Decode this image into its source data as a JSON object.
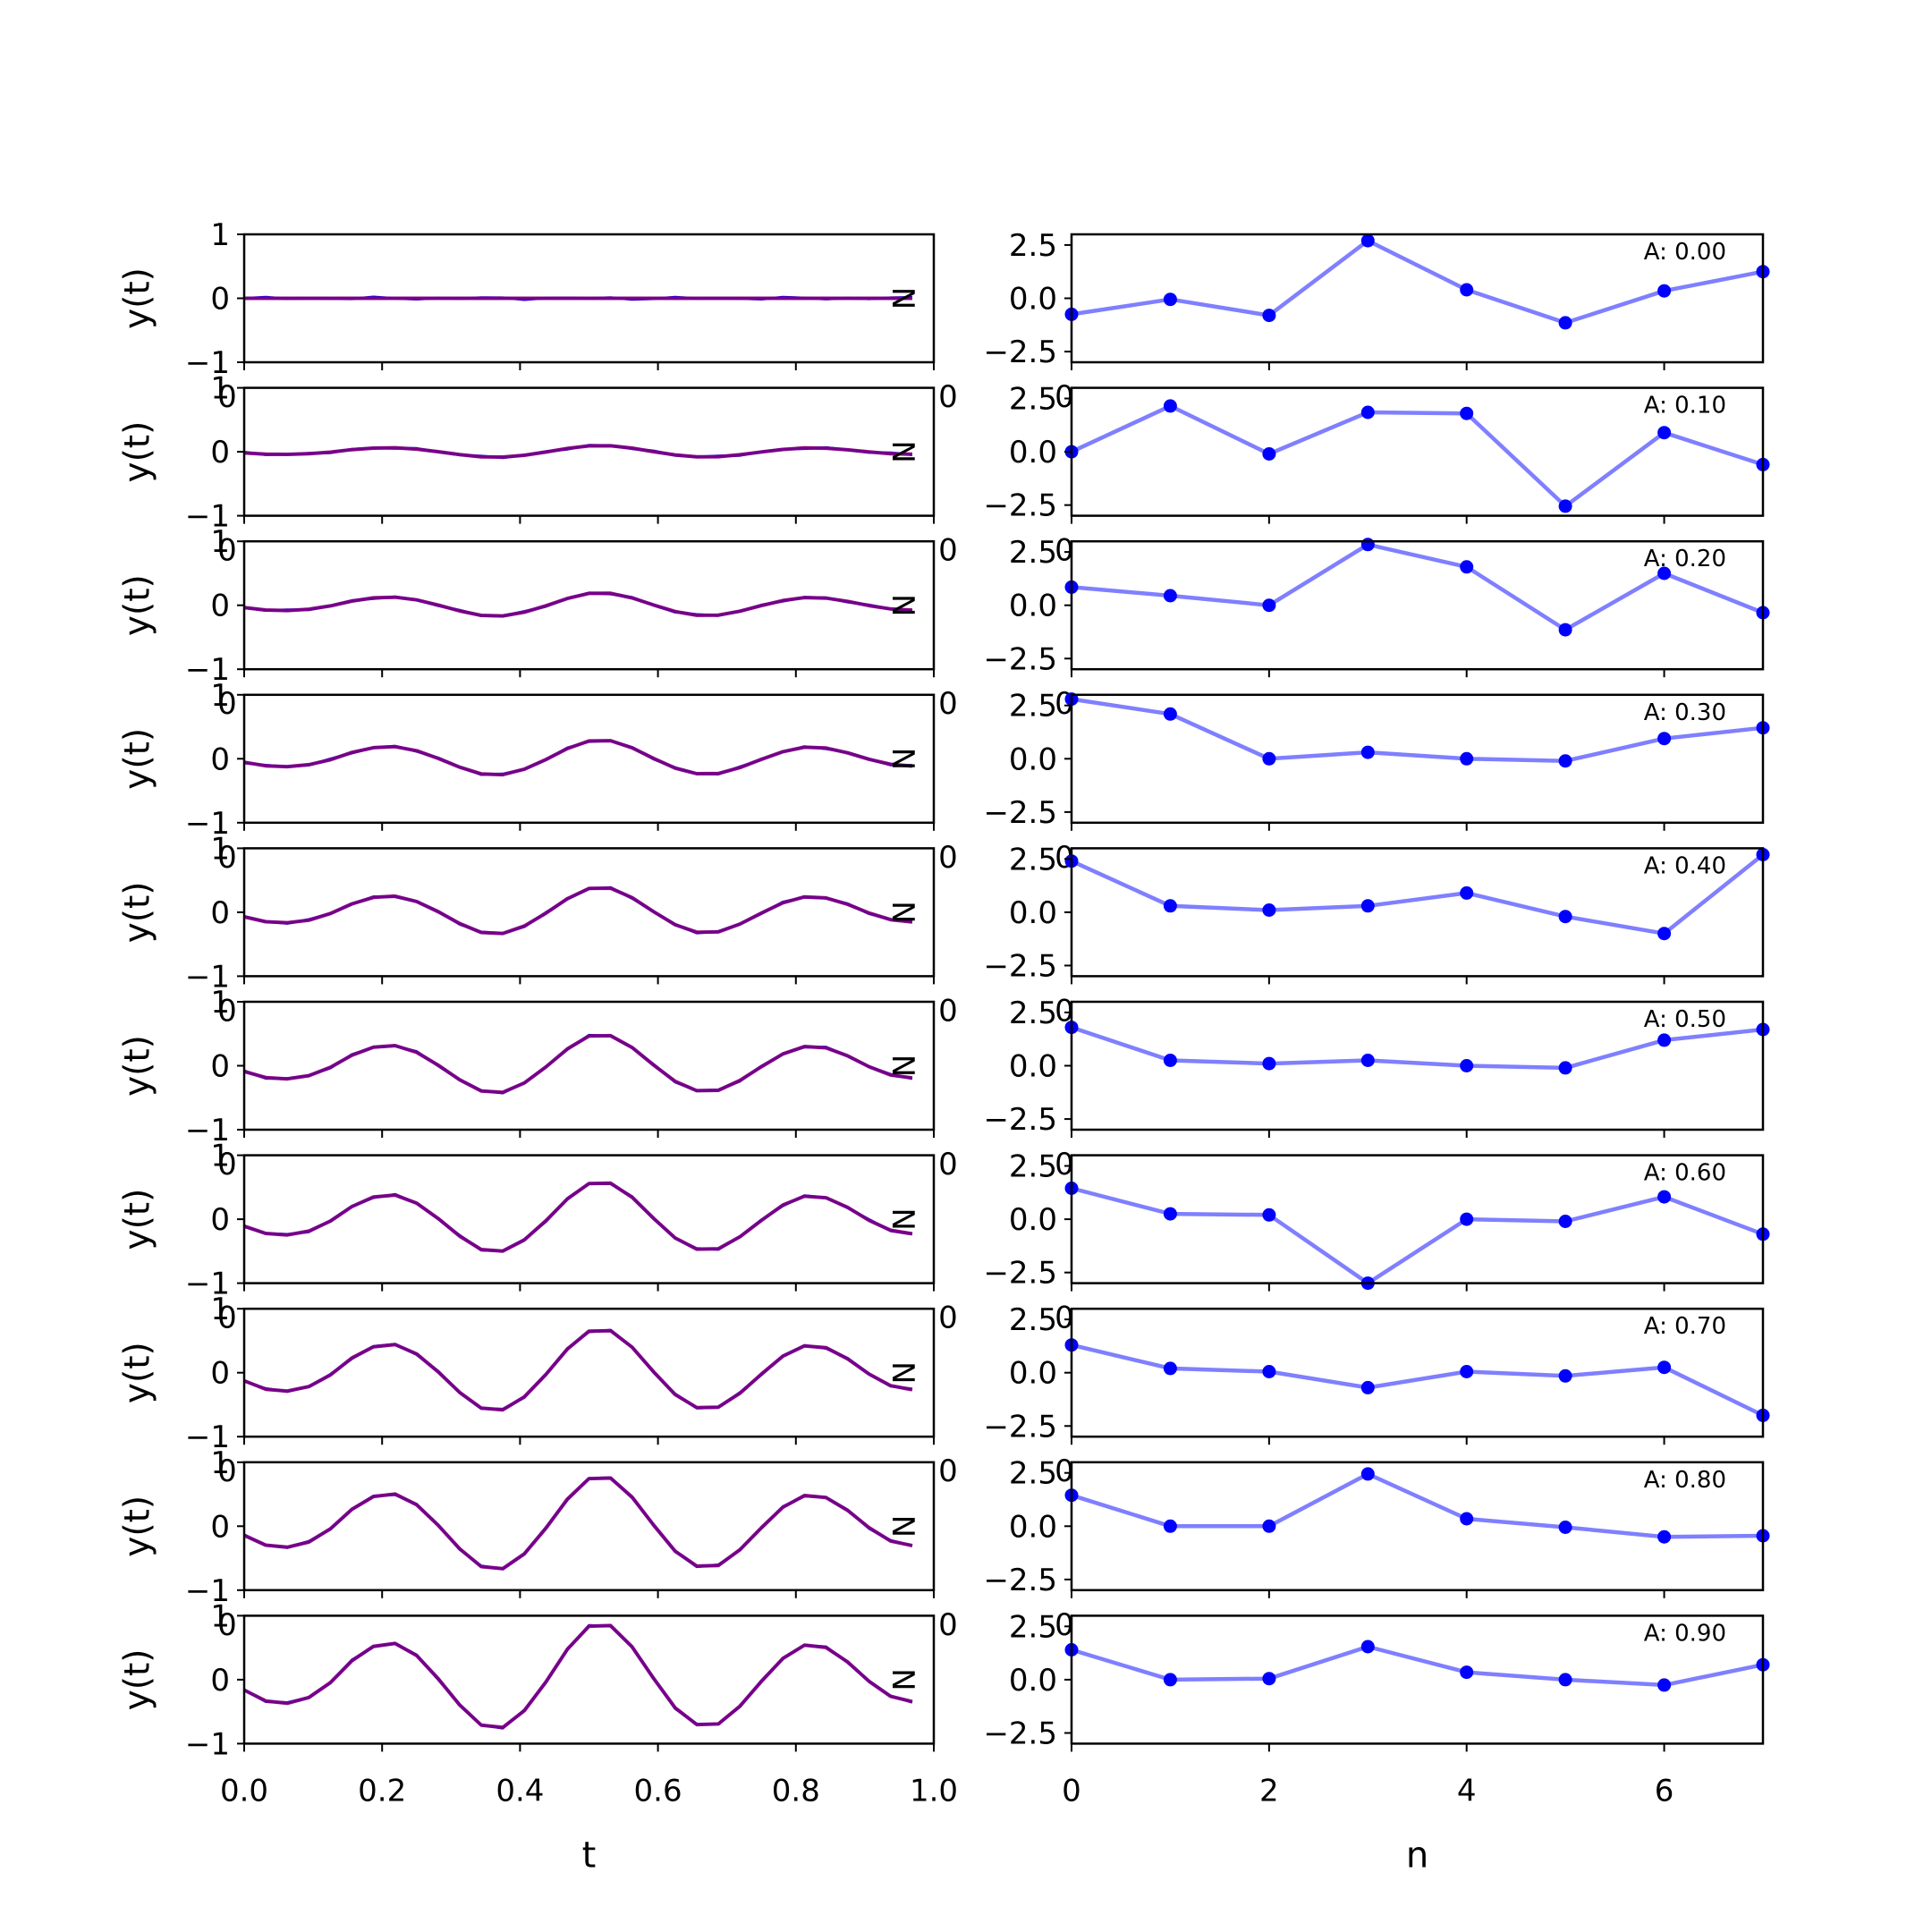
{
  "chart_data": [
    {
      "type": "line",
      "panel": "left",
      "xlabel": "t",
      "ylabel": "y(t)",
      "x_ticks": [
        "0.0",
        "0.2",
        "0.4",
        "0.6",
        "0.8",
        "1.0"
      ],
      "y_ticks": [
        "-1",
        "0",
        "1"
      ],
      "xlim": [
        0.0,
        1.0
      ],
      "ylim": [
        -1,
        1
      ],
      "clipped_tick_labels": {
        "left": "0",
        "right": "0"
      },
      "corner_label": "N",
      "series_colors": {
        "true": "#ff0000",
        "estimate": "#0000ff"
      },
      "line_color": "#800080",
      "amplitudes": [
        0.0,
        0.1,
        0.2,
        0.3,
        0.4,
        0.5,
        0.6,
        0.7,
        0.8,
        0.9
      ],
      "t_samples": [
        0.0,
        0.03125,
        0.0625,
        0.09375,
        0.125,
        0.15625,
        0.1875,
        0.21875,
        0.25,
        0.28125,
        0.3125,
        0.34375,
        0.375,
        0.40625,
        0.4375,
        0.46875,
        0.5,
        0.53125,
        0.5625,
        0.59375,
        0.625,
        0.65625,
        0.6875,
        0.71875,
        0.75,
        0.78125,
        0.8125,
        0.84375,
        0.875,
        0.90625,
        0.9375,
        0.96875
      ],
      "waveform": [
        -0.18,
        -0.37,
        -0.41,
        -0.31,
        -0.05,
        0.33,
        0.58,
        0.63,
        0.42,
        0.02,
        -0.44,
        -0.79,
        -0.83,
        -0.54,
        -0.04,
        0.53,
        0.93,
        0.94,
        0.57,
        0.02,
        -0.49,
        -0.78,
        -0.77,
        -0.46,
        -0.03,
        0.37,
        0.6,
        0.56,
        0.31,
        -0.03,
        -0.29,
        -0.38
      ]
    },
    {
      "type": "line",
      "panel": "right",
      "xlabel": "n",
      "ylabel": "",
      "x_ticks": [
        "0",
        "2",
        "4",
        "6"
      ],
      "y_ticks": [
        "-2.5",
        "0.0",
        "2.5"
      ],
      "xlim": [
        0,
        7
      ],
      "ylim": [
        -3.0,
        3.0
      ],
      "clipped_tick_label": "0",
      "line_color": "#0000ff",
      "series": [
        {
          "annotation": "A: 0.00",
          "values": [
            -0.75,
            -0.05,
            -0.8,
            2.7,
            0.4,
            -1.15,
            0.35,
            1.25
          ]
        },
        {
          "annotation": "A: 0.10",
          "values": [
            0.0,
            2.15,
            -0.1,
            1.85,
            1.8,
            -2.55,
            0.9,
            -0.6
          ]
        },
        {
          "annotation": "A: 0.20",
          "values": [
            0.85,
            0.45,
            0.0,
            2.85,
            1.8,
            -1.15,
            1.5,
            -0.35
          ]
        },
        {
          "annotation": "A: 0.30",
          "values": [
            2.8,
            2.1,
            0.0,
            0.3,
            0.0,
            -0.1,
            0.95,
            1.45
          ]
        },
        {
          "annotation": "A: 0.40",
          "values": [
            2.4,
            0.3,
            0.1,
            0.3,
            0.9,
            -0.2,
            -1.0,
            2.7
          ]
        },
        {
          "annotation": "A: 0.50",
          "values": [
            1.8,
            0.25,
            0.1,
            0.25,
            0.0,
            -0.1,
            1.2,
            1.7
          ]
        },
        {
          "annotation": "A: 0.60",
          "values": [
            1.45,
            0.25,
            0.2,
            -3.0,
            0.0,
            -0.1,
            1.05,
            -0.7
          ]
        },
        {
          "annotation": "A: 0.70",
          "values": [
            1.3,
            0.2,
            0.05,
            -0.7,
            0.05,
            -0.15,
            0.25,
            -2.0
          ]
        },
        {
          "annotation": "A: 0.80",
          "values": [
            1.45,
            0.0,
            0.0,
            2.45,
            0.35,
            -0.05,
            -0.5,
            -0.45
          ]
        },
        {
          "annotation": "A: 0.90",
          "values": [
            1.4,
            0.0,
            0.05,
            1.55,
            0.35,
            0.0,
            -0.25,
            0.7
          ]
        }
      ]
    }
  ]
}
